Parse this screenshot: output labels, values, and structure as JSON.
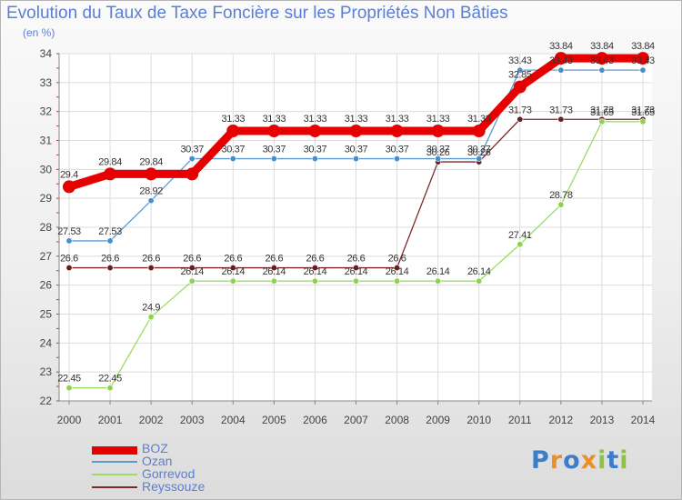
{
  "title": "Evolution du Taux de Taxe Foncière sur les Propriétés Non Bâties",
  "subtitle": "(en %)",
  "logo": {
    "text": "Proxiti",
    "colors": [
      "#3a7ec9",
      "#e8912c",
      "#3a7ec9",
      "#e8912c",
      "#8bc53f",
      "#3a7ec9",
      "#8bc53f"
    ]
  },
  "chart_data": {
    "type": "line",
    "title": "Evolution du Taux de Taxe Foncière sur les Propriétés Non Bâties",
    "ylabel": "(en %)",
    "xlabel": "",
    "ylim": [
      22,
      34
    ],
    "yticks": [
      "22",
      "23",
      "24",
      "25",
      "26",
      "27",
      "28",
      "29",
      "30",
      "31",
      "32",
      "33",
      "34"
    ],
    "categories": [
      "2000",
      "2001",
      "2002",
      "2003",
      "2004",
      "2005",
      "2006",
      "2007",
      "2008",
      "2009",
      "2010",
      "2011",
      "2012",
      "2013",
      "2014"
    ],
    "grid": true,
    "legend_position": "bottom-left",
    "series": [
      {
        "name": "BOZ",
        "color": "#e60000",
        "values": [
          29.4,
          29.84,
          29.84,
          29.84,
          31.33,
          31.33,
          31.33,
          31.33,
          31.33,
          31.33,
          31.33,
          32.85,
          33.84,
          33.84,
          33.84
        ],
        "labels": [
          "29.4",
          "29.84",
          "29.84",
          "",
          "31.33",
          "31.33",
          "31.33",
          "31.33",
          "31.33",
          "31.33",
          "31.33",
          "32.85",
          "33.84",
          "33.84",
          "33.84"
        ]
      },
      {
        "name": "Ozan",
        "color": "#5b9bd0",
        "values": [
          27.53,
          27.53,
          28.92,
          30.37,
          30.37,
          30.37,
          30.37,
          30.37,
          30.37,
          30.37,
          30.37,
          33.43,
          33.43,
          33.43,
          33.43
        ],
        "labels": [
          "27.53",
          "27.53",
          "28.92",
          "30.37",
          "30.37",
          "30.37",
          "30.37",
          "30.37",
          "30.37",
          "30.37",
          "30.37",
          "33.43",
          "33.43",
          "33.43",
          "33.43"
        ]
      },
      {
        "name": "Gorrevod",
        "color": "#9edb62",
        "values": [
          22.45,
          22.45,
          24.9,
          26.14,
          26.14,
          26.14,
          26.14,
          26.14,
          26.14,
          26.14,
          26.14,
          27.41,
          28.78,
          31.65,
          31.65
        ],
        "labels": [
          "22.45",
          "22.45",
          "24.9",
          "26.14",
          "26.14",
          "26.14",
          "26.14",
          "26.14",
          "26.14",
          "26.14",
          "26.14",
          "27.41",
          "28.78",
          "31.65",
          "31.65"
        ]
      },
      {
        "name": "Reyssouze",
        "color": "#7b2a2a",
        "values": [
          26.6,
          26.6,
          26.6,
          26.6,
          26.6,
          26.6,
          26.6,
          26.6,
          26.6,
          30.26,
          30.26,
          31.73,
          31.73,
          31.73,
          31.73
        ],
        "labels": [
          "26.6",
          "26.6",
          "26.6",
          "26.6",
          "26.6",
          "26.6",
          "26.6",
          "26.6",
          "26.6",
          "30.26",
          "30.26",
          "31.73",
          "31.73",
          "31.73",
          "31.73"
        ]
      }
    ]
  }
}
